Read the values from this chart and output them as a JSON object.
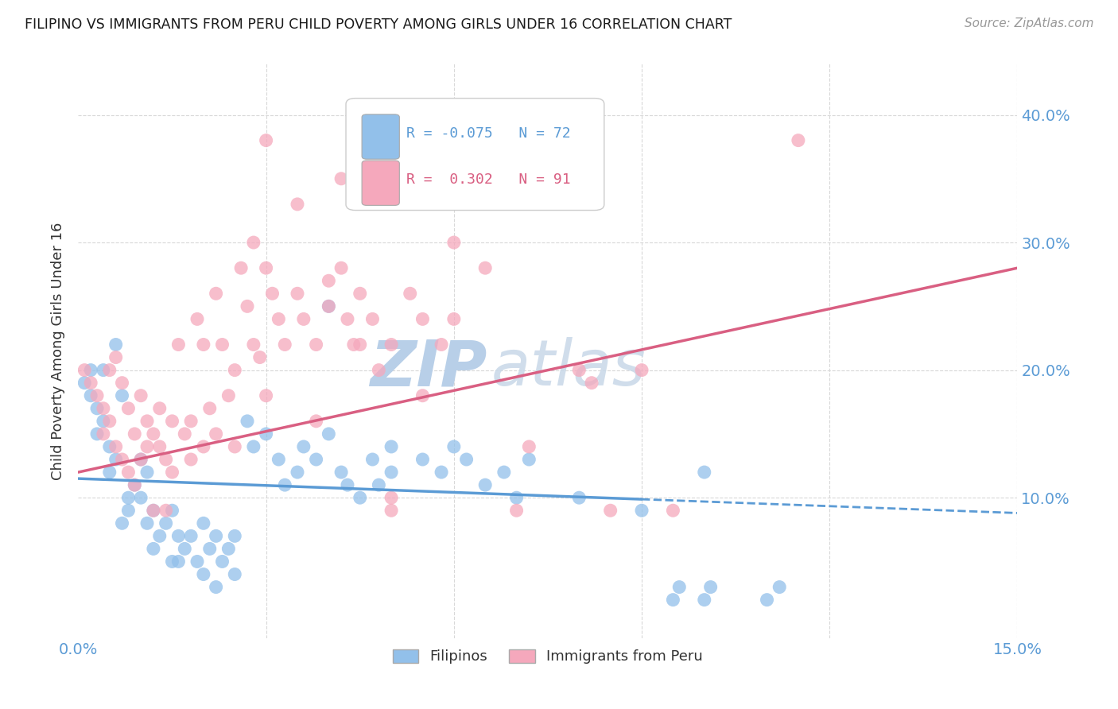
{
  "title": "FILIPINO VS IMMIGRANTS FROM PERU CHILD POVERTY AMONG GIRLS UNDER 16 CORRELATION CHART",
  "source": "Source: ZipAtlas.com",
  "ylabel": "Child Poverty Among Girls Under 16",
  "xlim": [
    0.0,
    0.15
  ],
  "ylim": [
    -0.01,
    0.44
  ],
  "filipinos_R": -0.075,
  "filipinos_N": 72,
  "peru_R": 0.302,
  "peru_N": 91,
  "legend_label_1": "Filipinos",
  "legend_label_2": "Immigrants from Peru",
  "color_filipinos": "#92c0ea",
  "color_peru": "#f5a8bc",
  "color_filipinos_line": "#5b9bd5",
  "color_peru_line": "#d95f82",
  "watermark": "ZIP",
  "watermark2": "atlas",
  "watermark_color": "#cddff0",
  "background_color": "#ffffff",
  "grid_color": "#d8d8d8"
}
